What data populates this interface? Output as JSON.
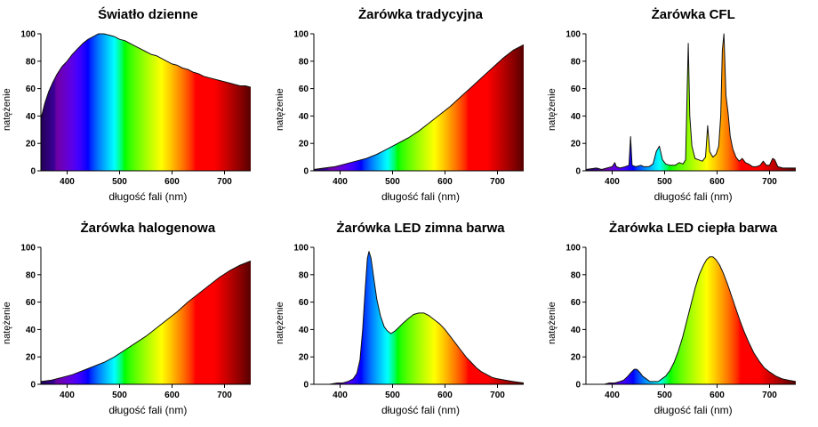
{
  "page": {
    "background": "#ffffff",
    "text_color": "#000000"
  },
  "chart_data": [
    {
      "type": "area",
      "title": "Światło dzienne",
      "xlabel": "długość fali (nm)",
      "ylabel": "natężenie",
      "xlim": [
        350,
        750
      ],
      "ylim": [
        0,
        100
      ],
      "xticks": [
        400,
        500,
        600,
        700
      ],
      "yticks": [
        0,
        20,
        40,
        60,
        80,
        100
      ],
      "fill": "visible-spectrum-gradient",
      "points": [
        [
          350,
          38
        ],
        [
          358,
          50
        ],
        [
          365,
          58
        ],
        [
          372,
          64
        ],
        [
          380,
          70
        ],
        [
          390,
          76
        ],
        [
          400,
          80
        ],
        [
          410,
          85
        ],
        [
          420,
          89
        ],
        [
          430,
          93
        ],
        [
          440,
          96
        ],
        [
          450,
          98
        ],
        [
          460,
          100
        ],
        [
          470,
          100
        ],
        [
          480,
          99
        ],
        [
          490,
          98
        ],
        [
          500,
          96
        ],
        [
          510,
          95
        ],
        [
          520,
          93
        ],
        [
          530,
          91
        ],
        [
          540,
          89
        ],
        [
          550,
          87
        ],
        [
          560,
          85
        ],
        [
          570,
          84
        ],
        [
          580,
          82
        ],
        [
          590,
          80
        ],
        [
          600,
          78
        ],
        [
          610,
          77
        ],
        [
          620,
          75
        ],
        [
          630,
          74
        ],
        [
          640,
          72
        ],
        [
          650,
          71
        ],
        [
          660,
          69
        ],
        [
          670,
          68
        ],
        [
          680,
          67
        ],
        [
          690,
          66
        ],
        [
          700,
          65
        ],
        [
          710,
          64
        ],
        [
          720,
          63
        ],
        [
          730,
          62
        ],
        [
          740,
          62
        ],
        [
          750,
          61
        ]
      ]
    },
    {
      "type": "area",
      "title": "Żarówka tradycyjna",
      "xlabel": "długość fali (nm)",
      "ylabel": "natężenie",
      "xlim": [
        350,
        750
      ],
      "ylim": [
        0,
        100
      ],
      "xticks": [
        400,
        500,
        600,
        700
      ],
      "yticks": [
        0,
        20,
        40,
        60,
        80,
        100
      ],
      "fill": "visible-spectrum-gradient",
      "points": [
        [
          350,
          1
        ],
        [
          370,
          2
        ],
        [
          390,
          3
        ],
        [
          410,
          5
        ],
        [
          430,
          7
        ],
        [
          450,
          9
        ],
        [
          470,
          12
        ],
        [
          490,
          16
        ],
        [
          510,
          20
        ],
        [
          530,
          24
        ],
        [
          550,
          29
        ],
        [
          570,
          35
        ],
        [
          590,
          41
        ],
        [
          610,
          47
        ],
        [
          630,
          54
        ],
        [
          650,
          61
        ],
        [
          670,
          68
        ],
        [
          690,
          75
        ],
        [
          710,
          82
        ],
        [
          730,
          88
        ],
        [
          750,
          92
        ]
      ]
    },
    {
      "type": "area",
      "title": "Żarówka CFL",
      "xlabel": "długość fali (nm)",
      "ylabel": "natężenie",
      "xlim": [
        350,
        750
      ],
      "ylim": [
        0,
        100
      ],
      "xticks": [
        400,
        500,
        600,
        700
      ],
      "yticks": [
        0,
        20,
        40,
        60,
        80,
        100
      ],
      "fill": "visible-spectrum-gradient",
      "points": [
        [
          350,
          1
        ],
        [
          370,
          2
        ],
        [
          380,
          1
        ],
        [
          390,
          2
        ],
        [
          400,
          3
        ],
        [
          405,
          6
        ],
        [
          408,
          3
        ],
        [
          415,
          2
        ],
        [
          425,
          3
        ],
        [
          432,
          4
        ],
        [
          435,
          25
        ],
        [
          438,
          4
        ],
        [
          445,
          3
        ],
        [
          455,
          4
        ],
        [
          460,
          3
        ],
        [
          470,
          3
        ],
        [
          478,
          5
        ],
        [
          484,
          14
        ],
        [
          490,
          18
        ],
        [
          496,
          8
        ],
        [
          502,
          5
        ],
        [
          510,
          4
        ],
        [
          520,
          4
        ],
        [
          528,
          6
        ],
        [
          535,
          5
        ],
        [
          540,
          8
        ],
        [
          543,
          60
        ],
        [
          545,
          93
        ],
        [
          548,
          40
        ],
        [
          552,
          18
        ],
        [
          558,
          9
        ],
        [
          565,
          8
        ],
        [
          572,
          7
        ],
        [
          578,
          10
        ],
        [
          582,
          33
        ],
        [
          586,
          14
        ],
        [
          592,
          10
        ],
        [
          598,
          12
        ],
        [
          603,
          18
        ],
        [
          607,
          40
        ],
        [
          610,
          88
        ],
        [
          613,
          100
        ],
        [
          617,
          55
        ],
        [
          621,
          42
        ],
        [
          625,
          25
        ],
        [
          630,
          16
        ],
        [
          636,
          10
        ],
        [
          642,
          7
        ],
        [
          648,
          9
        ],
        [
          654,
          6
        ],
        [
          660,
          5
        ],
        [
          668,
          3
        ],
        [
          675,
          3
        ],
        [
          682,
          4
        ],
        [
          688,
          7
        ],
        [
          694,
          4
        ],
        [
          700,
          4
        ],
        [
          706,
          9
        ],
        [
          710,
          8
        ],
        [
          716,
          3
        ],
        [
          725,
          2
        ],
        [
          735,
          2
        ],
        [
          750,
          2
        ]
      ]
    },
    {
      "type": "area",
      "title": "Żarówka halogenowa",
      "xlabel": "długość fali (nm)",
      "ylabel": "natężenie",
      "xlim": [
        350,
        750
      ],
      "ylim": [
        0,
        100
      ],
      "xticks": [
        400,
        500,
        600,
        700
      ],
      "yticks": [
        0,
        20,
        40,
        60,
        80,
        100
      ],
      "fill": "visible-spectrum-gradient",
      "points": [
        [
          350,
          2
        ],
        [
          370,
          3
        ],
        [
          390,
          5
        ],
        [
          410,
          7
        ],
        [
          430,
          10
        ],
        [
          450,
          13
        ],
        [
          470,
          16
        ],
        [
          490,
          20
        ],
        [
          510,
          25
        ],
        [
          530,
          30
        ],
        [
          550,
          35
        ],
        [
          570,
          41
        ],
        [
          590,
          47
        ],
        [
          610,
          53
        ],
        [
          630,
          60
        ],
        [
          650,
          66
        ],
        [
          670,
          72
        ],
        [
          690,
          78
        ],
        [
          710,
          83
        ],
        [
          730,
          87
        ],
        [
          750,
          90
        ]
      ]
    },
    {
      "type": "area",
      "title": "Żarówka LED zimna barwa",
      "xlabel": "długość fali (nm)",
      "ylabel": "natężenie",
      "xlim": [
        350,
        750
      ],
      "ylim": [
        0,
        100
      ],
      "xticks": [
        400,
        500,
        600,
        700
      ],
      "yticks": [
        0,
        20,
        40,
        60,
        80,
        100
      ],
      "fill": "visible-spectrum-gradient",
      "points": [
        [
          350,
          0
        ],
        [
          380,
          0
        ],
        [
          395,
          1
        ],
        [
          405,
          1
        ],
        [
          415,
          2
        ],
        [
          425,
          4
        ],
        [
          432,
          8
        ],
        [
          438,
          18
        ],
        [
          443,
          40
        ],
        [
          448,
          70
        ],
        [
          452,
          92
        ],
        [
          455,
          97
        ],
        [
          459,
          92
        ],
        [
          464,
          78
        ],
        [
          470,
          62
        ],
        [
          477,
          50
        ],
        [
          484,
          42
        ],
        [
          490,
          39
        ],
        [
          497,
          37
        ],
        [
          505,
          39
        ],
        [
          513,
          42
        ],
        [
          521,
          45
        ],
        [
          530,
          48
        ],
        [
          540,
          51
        ],
        [
          550,
          52
        ],
        [
          560,
          52
        ],
        [
          570,
          50
        ],
        [
          580,
          47
        ],
        [
          590,
          44
        ],
        [
          600,
          40
        ],
        [
          610,
          35
        ],
        [
          620,
          30
        ],
        [
          630,
          25
        ],
        [
          640,
          20
        ],
        [
          650,
          16
        ],
        [
          660,
          12
        ],
        [
          670,
          9
        ],
        [
          680,
          7
        ],
        [
          690,
          5
        ],
        [
          700,
          4
        ],
        [
          715,
          3
        ],
        [
          730,
          2
        ],
        [
          750,
          1
        ]
      ]
    },
    {
      "type": "area",
      "title": "Żarówka LED ciepła barwa",
      "xlabel": "długość fali (nm)",
      "ylabel": "natężenie",
      "xlim": [
        350,
        750
      ],
      "ylim": [
        0,
        100
      ],
      "xticks": [
        400,
        500,
        600,
        700
      ],
      "yticks": [
        0,
        20,
        40,
        60,
        80,
        100
      ],
      "fill": "visible-spectrum-gradient",
      "points": [
        [
          350,
          0
        ],
        [
          385,
          0
        ],
        [
          395,
          1
        ],
        [
          405,
          1
        ],
        [
          415,
          2
        ],
        [
          422,
          3
        ],
        [
          430,
          6
        ],
        [
          437,
          9
        ],
        [
          442,
          11
        ],
        [
          447,
          11
        ],
        [
          452,
          9
        ],
        [
          458,
          6
        ],
        [
          465,
          4
        ],
        [
          472,
          2
        ],
        [
          480,
          2
        ],
        [
          488,
          2
        ],
        [
          495,
          4
        ],
        [
          502,
          6
        ],
        [
          510,
          10
        ],
        [
          518,
          16
        ],
        [
          526,
          24
        ],
        [
          534,
          34
        ],
        [
          542,
          46
        ],
        [
          550,
          58
        ],
        [
          558,
          70
        ],
        [
          566,
          80
        ],
        [
          574,
          87
        ],
        [
          580,
          91
        ],
        [
          586,
          93
        ],
        [
          592,
          93
        ],
        [
          598,
          91
        ],
        [
          605,
          87
        ],
        [
          612,
          81
        ],
        [
          620,
          73
        ],
        [
          628,
          64
        ],
        [
          636,
          55
        ],
        [
          644,
          46
        ],
        [
          652,
          38
        ],
        [
          660,
          31
        ],
        [
          670,
          23
        ],
        [
          680,
          17
        ],
        [
          690,
          12
        ],
        [
          700,
          9
        ],
        [
          712,
          6
        ],
        [
          724,
          4
        ],
        [
          736,
          3
        ],
        [
          750,
          2
        ]
      ]
    }
  ]
}
